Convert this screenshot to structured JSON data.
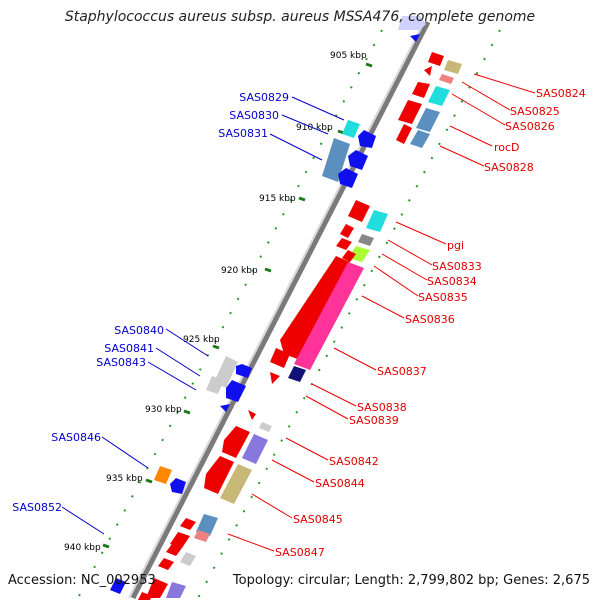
{
  "title": "Staphylococcus aureus subsp. aureus MSSA476, complete genome",
  "footer": {
    "accession": "Accession: NC_002953",
    "summary": "Topology: circular; Length: 2,799,802 bp; Genes: 2,675"
  },
  "ticks": [
    "905 kbp",
    "910 kbp",
    "915 kbp",
    "920 kbp",
    "925 kbp",
    "930 kbp",
    "935 kbp",
    "940 kbp"
  ],
  "forward_labels": [
    "SAS0824",
    "SAS0825",
    "SAS0826",
    "rocD",
    "SAS0828",
    "pgi",
    "SAS0833",
    "SAS0834",
    "SAS0835",
    "SAS0836",
    "SAS0837",
    "SAS0838",
    "SAS0839",
    "SAS0842",
    "SAS0844",
    "SAS0845",
    "SAS0847"
  ],
  "reverse_labels": [
    "SAS0829",
    "SAS0830",
    "SAS0831",
    "SAS0840",
    "SAS0841",
    "SAS0843",
    "SAS0846",
    "SAS0852"
  ],
  "colors": {
    "forward_label": "#e00000",
    "reverse_label": "#0000cc",
    "backbone": "#888888",
    "tick": "#1a8c1a"
  }
}
